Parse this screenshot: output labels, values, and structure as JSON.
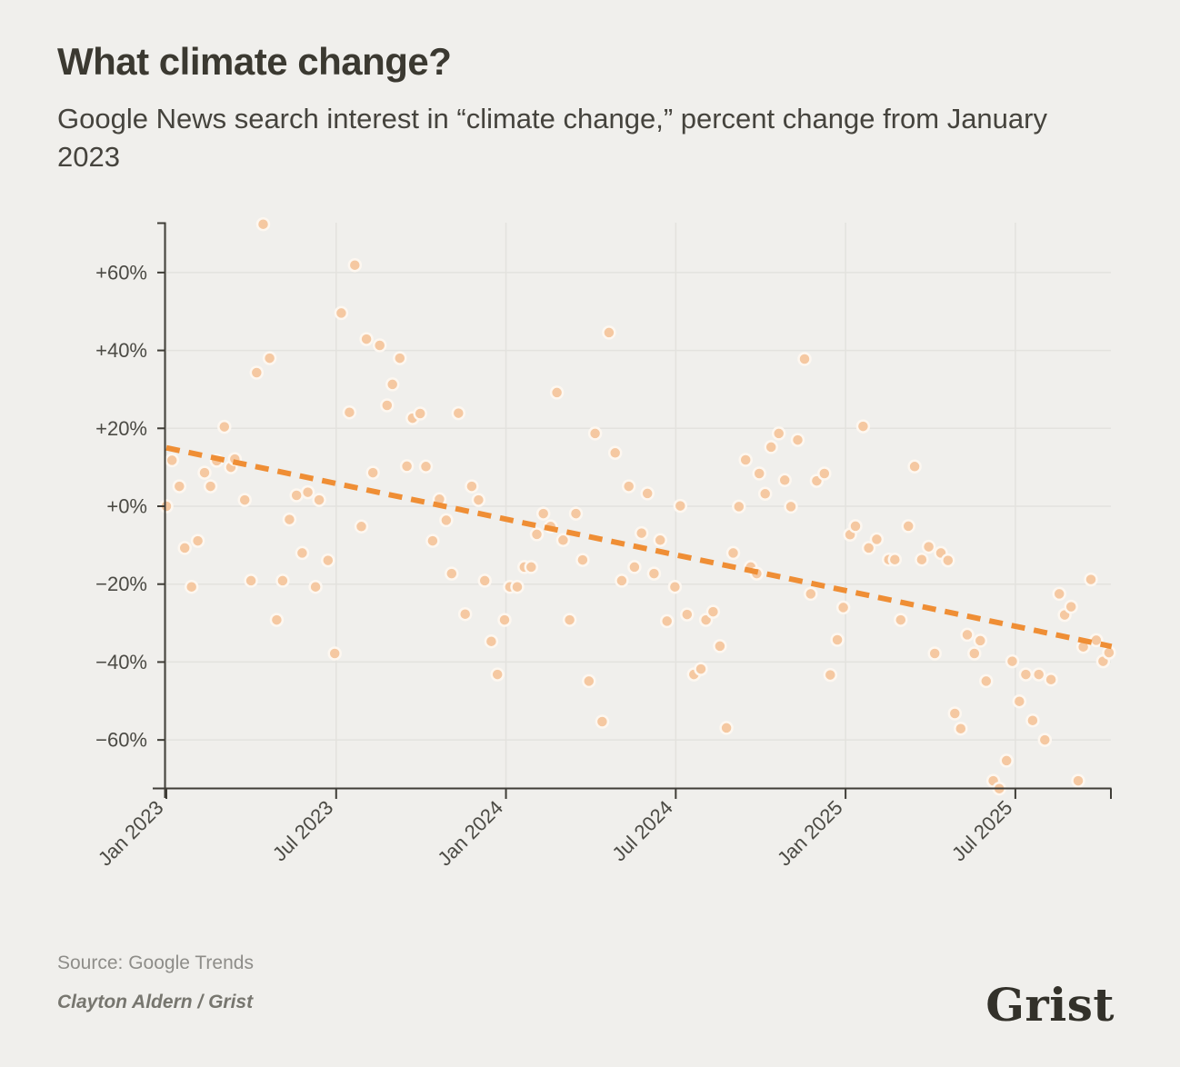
{
  "header": {
    "title": "What climate change?",
    "subtitle": "Google News search interest in “climate change,” percent change from January 2023"
  },
  "footer": {
    "source": "Source: Google Trends",
    "byline": "Clayton Aldern / Grist",
    "logo_text": "Grist"
  },
  "colors": {
    "background": "#F0EFEC",
    "gridline": "#E3E2DE",
    "axis": "#3F3D37",
    "tick_label": "#4B4A44",
    "point_fill": "#F5C8A1",
    "point_halo": "#FDF7F0",
    "trend_orange": "#EF8E35"
  },
  "chart_data": {
    "type": "scatter",
    "title": "What climate change?",
    "subtitle": "Google News search interest in \"climate change,\" percent change from January 2023",
    "x_unit": "months_since_jan_2023",
    "x_axis": {
      "tick_labels": [
        "Jan 2023",
        "Jul 2023",
        "Jan 2024",
        "Jul 2024",
        "Jan 2025",
        "Jul 2025"
      ],
      "tick_month_offsets": [
        0,
        6,
        12,
        18,
        24,
        30
      ],
      "domain_months": [
        -0.5,
        33.4
      ]
    },
    "y_axis": {
      "tick_labels": [
        "+60%",
        "+40%",
        "+20%",
        "+0%",
        "−20%",
        "−40%",
        "−60%"
      ],
      "tick_values": [
        60,
        40,
        20,
        0,
        -20,
        -40,
        -60
      ],
      "range_pct": [
        -73,
        73
      ]
    },
    "grid": true,
    "legend": false,
    "trend": {
      "style": "dashed",
      "start": [
        0,
        15
      ],
      "end": [
        33.4,
        -36
      ]
    },
    "points": [
      [
        0,
        0
      ],
      [
        0.2,
        11.8
      ],
      [
        0.46,
        5.1
      ],
      [
        0.65,
        -10.7
      ],
      [
        0.89,
        -20.7
      ],
      [
        1.11,
        -8.9
      ],
      [
        1.35,
        8.6
      ],
      [
        1.56,
        5.1
      ],
      [
        1.78,
        11.7
      ],
      [
        2.05,
        20.4
      ],
      [
        2.28,
        10
      ],
      [
        2.42,
        12.1
      ],
      [
        2.77,
        1.6
      ],
      [
        2.99,
        -19.1
      ],
      [
        3.19,
        34.3
      ],
      [
        3.42,
        72.4
      ],
      [
        3.65,
        38
      ],
      [
        3.9,
        -29.2
      ],
      [
        4.11,
        -19.1
      ],
      [
        4.35,
        -3.4
      ],
      [
        4.6,
        2.8
      ],
      [
        4.8,
        -12
      ],
      [
        5,
        3.6
      ],
      [
        5.27,
        -20.7
      ],
      [
        5.4,
        1.6
      ],
      [
        5.71,
        -13.9
      ],
      [
        5.95,
        -37.8
      ],
      [
        6.18,
        49.6
      ],
      [
        6.47,
        24.1
      ],
      [
        6.66,
        61.9
      ],
      [
        6.89,
        -5.2
      ],
      [
        7.07,
        42.9
      ],
      [
        7.3,
        8.6
      ],
      [
        7.54,
        41.3
      ],
      [
        7.8,
        25.9
      ],
      [
        7.99,
        31.3
      ],
      [
        8.25,
        38
      ],
      [
        8.5,
        10.3
      ],
      [
        8.7,
        22.6
      ],
      [
        8.97,
        23.8
      ],
      [
        9.17,
        10.2
      ],
      [
        9.41,
        -8.9
      ],
      [
        9.65,
        1.8
      ],
      [
        9.89,
        -3.6
      ],
      [
        10.08,
        -17.3
      ],
      [
        10.32,
        23.9
      ],
      [
        10.56,
        -27.7
      ],
      [
        10.79,
        5.1
      ],
      [
        11.03,
        1.6
      ],
      [
        11.25,
        -19.1
      ],
      [
        11.48,
        -34.7
      ],
      [
        11.7,
        -43.2
      ],
      [
        11.95,
        -29.2
      ],
      [
        12.14,
        -20.7
      ],
      [
        12.4,
        -20.7
      ],
      [
        12.65,
        -15.6
      ],
      [
        12.89,
        -15.6
      ],
      [
        13.09,
        -7.2
      ],
      [
        13.32,
        -1.9
      ],
      [
        13.58,
        -5.2
      ],
      [
        13.8,
        29.2
      ],
      [
        14.02,
        -8.7
      ],
      [
        14.25,
        -29.2
      ],
      [
        14.47,
        -1.9
      ],
      [
        14.71,
        -13.8
      ],
      [
        14.93,
        -44.9
      ],
      [
        15.15,
        18.7
      ],
      [
        15.4,
        -55.3
      ],
      [
        15.64,
        44.6
      ],
      [
        15.86,
        13.7
      ],
      [
        16.09,
        -19.1
      ],
      [
        16.34,
        5.1
      ],
      [
        16.54,
        -15.6
      ],
      [
        16.79,
        -6.9
      ],
      [
        17,
        3.3
      ],
      [
        17.23,
        -17.3
      ],
      [
        17.45,
        -8.7
      ],
      [
        17.69,
        -29.5
      ],
      [
        17.97,
        -20.7
      ],
      [
        18.16,
        0.1
      ],
      [
        18.4,
        -27.8
      ],
      [
        18.64,
        -43.2
      ],
      [
        18.89,
        -41.8
      ],
      [
        19.07,
        -29.2
      ],
      [
        19.32,
        -27.1
      ],
      [
        19.56,
        -35.9
      ],
      [
        19.79,
        -56.9
      ],
      [
        20.03,
        -12
      ],
      [
        20.23,
        -0.1
      ],
      [
        20.47,
        11.9
      ],
      [
        20.65,
        -15.6
      ],
      [
        20.86,
        -17.3
      ],
      [
        20.95,
        8.4
      ],
      [
        21.16,
        3.2
      ],
      [
        21.37,
        15.2
      ],
      [
        21.64,
        18.7
      ],
      [
        21.85,
        6.7
      ],
      [
        22.07,
        -0.1
      ],
      [
        22.31,
        17
      ],
      [
        22.55,
        37.8
      ],
      [
        22.77,
        -22.5
      ],
      [
        22.98,
        6.5
      ],
      [
        23.25,
        8.4
      ],
      [
        23.46,
        -43.3
      ],
      [
        23.71,
        -34.3
      ],
      [
        23.92,
        -26
      ],
      [
        24.16,
        -7.3
      ],
      [
        24.35,
        -5.1
      ],
      [
        24.62,
        20.5
      ],
      [
        24.82,
        -10.7
      ],
      [
        25.1,
        -8.5
      ],
      [
        25.53,
        -13.7
      ],
      [
        25.74,
        -13.7
      ],
      [
        25.95,
        -29.2
      ],
      [
        26.22,
        -5.1
      ],
      [
        26.44,
        10.2
      ],
      [
        26.69,
        -13.7
      ],
      [
        26.94,
        -10.4
      ],
      [
        27.15,
        -37.8
      ],
      [
        27.37,
        -12
      ],
      [
        27.62,
        -13.9
      ],
      [
        27.86,
        -53.2
      ],
      [
        28.07,
        -57.1
      ],
      [
        28.3,
        -33
      ],
      [
        28.55,
        -37.8
      ],
      [
        28.76,
        -34.5
      ],
      [
        28.97,
        -44.9
      ],
      [
        29.22,
        -70.5
      ],
      [
        29.43,
        -72.5
      ],
      [
        29.69,
        -65.3
      ],
      [
        29.89,
        -39.8
      ],
      [
        30.14,
        -50.1
      ],
      [
        30.37,
        -43.2
      ],
      [
        30.61,
        -55
      ],
      [
        30.83,
        -43.2
      ],
      [
        31.04,
        -60
      ],
      [
        31.26,
        -44.5
      ],
      [
        31.55,
        -22.5
      ],
      [
        31.74,
        -27.9
      ],
      [
        31.97,
        -25.8
      ],
      [
        32.22,
        -70.5
      ],
      [
        32.4,
        -36.1
      ],
      [
        32.67,
        -18.8
      ],
      [
        32.86,
        -34.4
      ],
      [
        33.1,
        -39.8
      ],
      [
        33.31,
        -37.6
      ]
    ]
  }
}
